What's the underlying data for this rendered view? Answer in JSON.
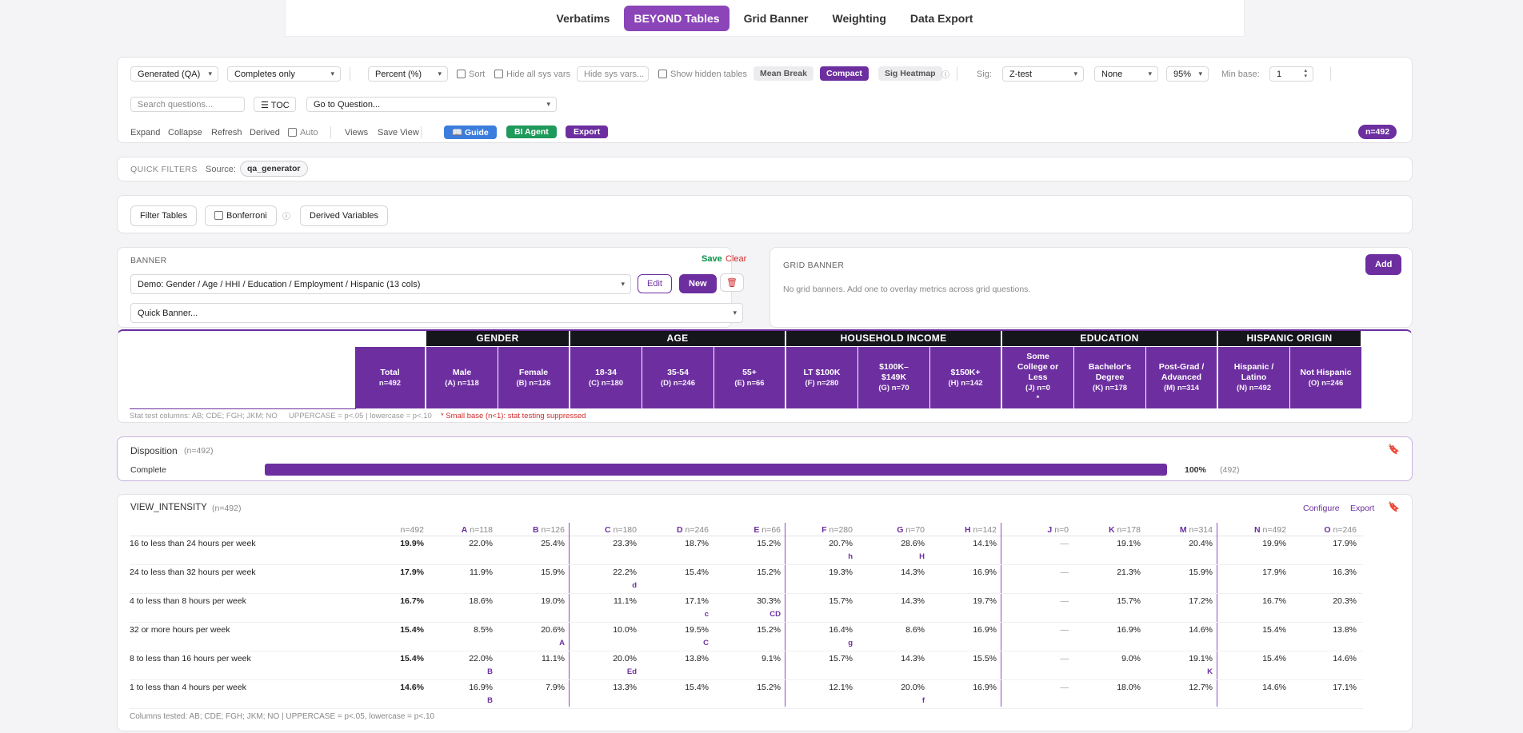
{
  "nav": {
    "tabs": [
      "Verbatims",
      "BEYOND Tables",
      "Grid Banner",
      "Weighting",
      "Data Export"
    ],
    "active": "BEYOND Tables"
  },
  "toolbar": {
    "dataset": "Generated (QA)",
    "completes": "Completes only",
    "measure": "Percent (%)",
    "sort": "Sort",
    "hide_sys": "Hide all sys vars",
    "hide_sys_placeholder": "Hide sys vars...",
    "show_hidden": "Show hidden tables",
    "mean_break": "Mean Break",
    "compact": "Compact",
    "sig_heatmap": "Sig Heatmap",
    "sig_label": "Sig:",
    "sig_test": "Z-test",
    "sig_none": "None",
    "confidence": "95%",
    "min_base_label": "Min base:",
    "min_base": "1",
    "search_placeholder": "Search questions...",
    "toc": "TOC",
    "goto": "Go to Question...",
    "expand": "Expand",
    "collapse": "Collapse",
    "refresh": "Refresh",
    "derived": "Derived",
    "auto": "Auto",
    "views": "Views",
    "save_view": "Save View",
    "guide": "Guide",
    "bi_agent": "BI Agent",
    "export": "Export",
    "n_badge": "n=492",
    "colors": {
      "guide": "#3b7ddd",
      "bi": "#1e9a5a",
      "purple": "#6d2fa0"
    }
  },
  "quick_filters": {
    "title": "QUICK FILTERS",
    "source_label": "Source:",
    "source": "qa_generator"
  },
  "filters": {
    "filter_tables": "Filter Tables",
    "bonferroni": "Bonferroni",
    "derived_vars": "Derived Variables"
  },
  "banner": {
    "title": "BANNER",
    "save": "Save",
    "clear": "Clear",
    "selected": "Demo: Gender / Age / HHI / Education / Employment / Hispanic (13 cols)",
    "edit": "Edit",
    "new": "New",
    "quick": "Quick Banner..."
  },
  "grid_banner": {
    "title": "GRID BANNER",
    "add": "Add",
    "empty": "No grid banners. Add one to overlay metrics across grid questions."
  },
  "groups": [
    "GENDER",
    "AGE",
    "HOUSEHOLD INCOME",
    "EDUCATION",
    "HISPANIC ORIGIN"
  ],
  "columns": [
    {
      "name": "Total",
      "sub": "n=492"
    },
    {
      "name": "Male",
      "sub": "(A) n=118"
    },
    {
      "name": "Female",
      "sub": "(B) n=126"
    },
    {
      "name": "18-34",
      "sub": "(C) n=180"
    },
    {
      "name": "35-54",
      "sub": "(D) n=246"
    },
    {
      "name": "55+",
      "sub": "(E) n=66"
    },
    {
      "name": "LT $100K",
      "sub": "(F) n=280"
    },
    {
      "name": "$100K–\n$149K",
      "sub": "(G) n=70"
    },
    {
      "name": "$150K+",
      "sub": "(H) n=142"
    },
    {
      "name": "Some\nCollege or\nLess",
      "sub": "(J) n=0\n*"
    },
    {
      "name": "Bachelor's\nDegree",
      "sub": "(K) n=178"
    },
    {
      "name": "Post-Grad /\nAdvanced",
      "sub": "(M) n=314"
    },
    {
      "name": "Hispanic /\nLatino",
      "sub": "(N) n=492"
    },
    {
      "name": "Not Hispanic",
      "sub": "(O) n=246"
    }
  ],
  "legend": {
    "stat": "Stat test columns: AB; CDE; FGH; JKM; NO",
    "case": "UPPERCASE = p<.05 | lowercase = p<.10",
    "small": "* Small base (n<1): stat testing suppressed"
  },
  "disposition": {
    "title": "Disposition",
    "n": "(n=492)",
    "row": "Complete",
    "pct": "100%",
    "count": "(492)",
    "fill": 1.0
  },
  "view_intensity": {
    "title": "VIEW_INTENSITY",
    "n": "(n=492)",
    "configure": "Configure",
    "export": "Export",
    "headers": [
      {
        "l": "",
        "n": "n=492"
      },
      {
        "l": "A",
        "n": "n=118"
      },
      {
        "l": "B",
        "n": "n=126"
      },
      {
        "l": "C",
        "n": "n=180"
      },
      {
        "l": "D",
        "n": "n=246"
      },
      {
        "l": "E",
        "n": "n=66"
      },
      {
        "l": "F",
        "n": "n=280"
      },
      {
        "l": "G",
        "n": "n=70"
      },
      {
        "l": "H",
        "n": "n=142"
      },
      {
        "l": "J",
        "n": "n=0"
      },
      {
        "l": "K",
        "n": "n=178"
      },
      {
        "l": "M",
        "n": "n=314"
      },
      {
        "l": "N",
        "n": "n=492"
      },
      {
        "l": "O",
        "n": "n=246"
      }
    ],
    "rows": [
      {
        "label": "16 to less than 24 hours per week",
        "vals": [
          "19.9%",
          "22.0%",
          "25.4%",
          "23.3%",
          "18.7%",
          "15.2%",
          "20.7%",
          "28.6%",
          "14.1%",
          "—",
          "19.1%",
          "20.4%",
          "19.9%",
          "17.9%"
        ],
        "sig": [
          "",
          "",
          "",
          "",
          "",
          "",
          "h",
          "H",
          "",
          "",
          "",
          "",
          "",
          ""
        ]
      },
      {
        "label": "24 to less than 32 hours per week",
        "vals": [
          "17.9%",
          "11.9%",
          "15.9%",
          "22.2%",
          "15.4%",
          "15.2%",
          "19.3%",
          "14.3%",
          "16.9%",
          "—",
          "21.3%",
          "15.9%",
          "17.9%",
          "16.3%"
        ],
        "sig": [
          "",
          "",
          "",
          "d",
          "",
          "",
          "",
          "",
          "",
          "",
          "",
          "",
          "",
          ""
        ]
      },
      {
        "label": "4 to less than 8 hours per week",
        "vals": [
          "16.7%",
          "18.6%",
          "19.0%",
          "11.1%",
          "17.1%",
          "30.3%",
          "15.7%",
          "14.3%",
          "19.7%",
          "—",
          "15.7%",
          "17.2%",
          "16.7%",
          "20.3%"
        ],
        "sig": [
          "",
          "",
          "",
          "",
          "c",
          "CD",
          "",
          "",
          "",
          "",
          "",
          "",
          "",
          ""
        ]
      },
      {
        "label": "32 or more hours per week",
        "vals": [
          "15.4%",
          "8.5%",
          "20.6%",
          "10.0%",
          "19.5%",
          "15.2%",
          "16.4%",
          "8.6%",
          "16.9%",
          "—",
          "16.9%",
          "14.6%",
          "15.4%",
          "13.8%"
        ],
        "sig": [
          "",
          "",
          "A",
          "",
          "C",
          "",
          "g",
          "",
          "",
          "",
          "",
          "",
          "",
          ""
        ]
      },
      {
        "label": "8 to less than 16 hours per week",
        "vals": [
          "15.4%",
          "22.0%",
          "11.1%",
          "20.0%",
          "13.8%",
          "9.1%",
          "15.7%",
          "14.3%",
          "15.5%",
          "—",
          "9.0%",
          "19.1%",
          "15.4%",
          "14.6%"
        ],
        "sig": [
          "",
          "B",
          "",
          "Ed",
          "",
          "",
          "",
          "",
          "",
          "",
          "",
          "K",
          "",
          ""
        ]
      },
      {
        "label": "1 to less than 4 hours per week",
        "vals": [
          "14.6%",
          "16.9%",
          "7.9%",
          "13.3%",
          "15.4%",
          "15.2%",
          "12.1%",
          "20.0%",
          "16.9%",
          "—",
          "18.0%",
          "12.7%",
          "14.6%",
          "17.1%"
        ],
        "sig": [
          "",
          "B",
          "",
          "",
          "",
          "",
          "",
          "f",
          "",
          "",
          "",
          "",
          "",
          ""
        ]
      }
    ],
    "footer": "Columns tested: AB; CDE; FGH; JKM; NO | UPPERCASE = p<.05, lowercase = p<.10"
  }
}
